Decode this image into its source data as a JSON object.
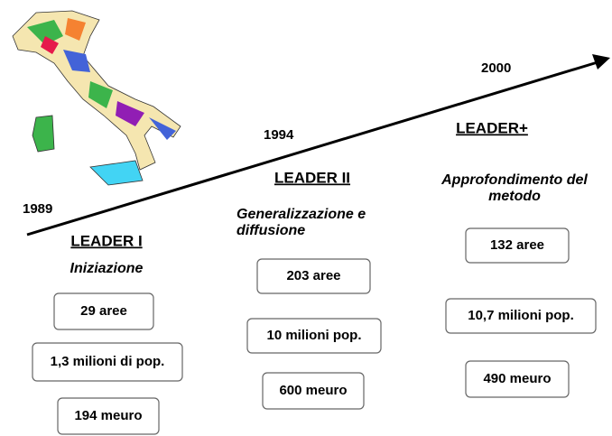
{
  "years": [
    "1989",
    "1994",
    "2000"
  ],
  "phases": [
    {
      "title": "LEADER I",
      "subtitle": [
        "Iniziazione"
      ],
      "boxes": [
        "29  aree",
        "1,3 milioni di pop.",
        "194 meuro"
      ]
    },
    {
      "title": "LEADER II",
      "subtitle": [
        "Generalizzazione e",
        "diffusione"
      ],
      "boxes": [
        "203 aree",
        "10 milioni pop.",
        "600 meuro"
      ]
    },
    {
      "title": "LEADER+",
      "subtitle": [
        "Approfondimento del",
        "metodo"
      ],
      "boxes": [
        "132 aree",
        "10,7 milioni pop.",
        "490 meuro"
      ]
    }
  ]
}
